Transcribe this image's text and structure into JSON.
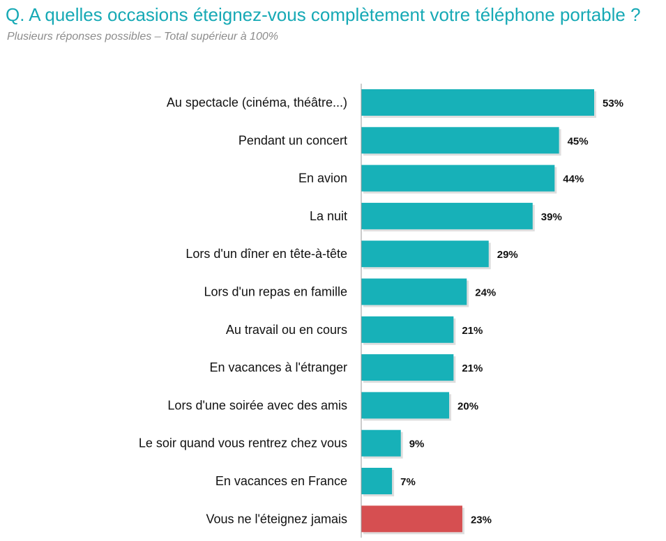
{
  "header": {
    "title": "Q. A quelles occasions éteignez-vous complètement votre téléphone portable ?",
    "subtitle": "Plusieurs réponses possibles – Total supérieur à 100%"
  },
  "chart_data": {
    "type": "bar",
    "orientation": "horizontal",
    "title": "Q. A quelles occasions éteignez-vous complètement votre téléphone portable ?",
    "subtitle": "Plusieurs réponses possibles – Total supérieur à 100%",
    "categories": [
      "Au spectacle (cinéma, théâtre...)",
      "Pendant un concert",
      "En avion",
      "La nuit",
      "Lors d'un dîner en tête-à-tête",
      "Lors d'un repas en famille",
      "Au travail ou en cours",
      "En vacances à l'étranger",
      "Lors d'une soirée avec des amis",
      "Le soir quand vous rentrez chez vous",
      "En vacances en France",
      "Vous ne l'éteignez jamais"
    ],
    "values": [
      53,
      45,
      44,
      39,
      29,
      24,
      21,
      21,
      20,
      9,
      7,
      23
    ],
    "value_labels": [
      "53%",
      "45%",
      "44%",
      "39%",
      "29%",
      "24%",
      "21%",
      "21%",
      "20%",
      "9%",
      "7%",
      "23%"
    ],
    "unit": "%",
    "colors": {
      "default": "#17b1b8",
      "highlight": "#d64f51",
      "title": "#16a9b5",
      "subtitle": "#8c8c8c",
      "axis": "#9a9a9a"
    },
    "highlight_index": 11,
    "xlim": [
      0,
      53
    ],
    "grid": false,
    "legend": "none"
  }
}
